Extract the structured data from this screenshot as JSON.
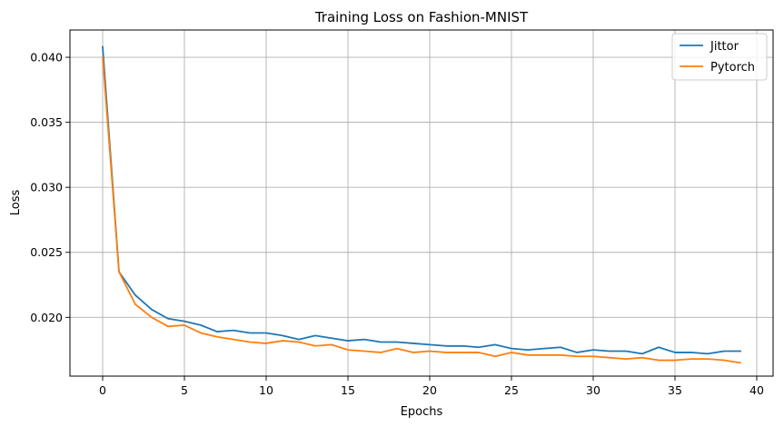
{
  "chart_data": {
    "type": "line",
    "title": "Training Loss on Fashion-MNIST",
    "xlabel": "Epochs",
    "ylabel": "Loss",
    "xlim": [
      -2,
      41
    ],
    "ylim": [
      0.01548,
      0.0421
    ],
    "xticks": [
      0,
      5,
      10,
      15,
      20,
      25,
      30,
      35,
      40
    ],
    "yticks": [
      0.02,
      0.025,
      0.03,
      0.035,
      0.04
    ],
    "xtick_labels": [
      "0",
      "5",
      "10",
      "15",
      "20",
      "25",
      "30",
      "35",
      "40"
    ],
    "ytick_labels": [
      "0.020",
      "0.025",
      "0.030",
      "0.035",
      "0.040"
    ],
    "grid": true,
    "legend_position": "top-right",
    "x": [
      0,
      1,
      2,
      3,
      4,
      5,
      6,
      7,
      8,
      9,
      10,
      11,
      12,
      13,
      14,
      15,
      16,
      17,
      18,
      19,
      20,
      21,
      22,
      23,
      24,
      25,
      26,
      27,
      28,
      29,
      30,
      31,
      32,
      33,
      34,
      35,
      36,
      37,
      38,
      39
    ],
    "series": [
      {
        "name": "Jittor",
        "color": "#1f77b4",
        "values": [
          0.0408,
          0.0235,
          0.0217,
          0.0206,
          0.0199,
          0.0197,
          0.0194,
          0.0189,
          0.019,
          0.0188,
          0.0188,
          0.0186,
          0.0183,
          0.0186,
          0.0184,
          0.0182,
          0.0183,
          0.0181,
          0.0181,
          0.018,
          0.0179,
          0.0178,
          0.0178,
          0.0177,
          0.0179,
          0.0176,
          0.0175,
          0.0176,
          0.0177,
          0.0173,
          0.0175,
          0.0174,
          0.0174,
          0.0172,
          0.0177,
          0.0173,
          0.0173,
          0.0172,
          0.0174,
          0.0174
        ]
      },
      {
        "name": "Pytorch",
        "color": "#ff7f0e",
        "values": [
          0.04,
          0.0235,
          0.021,
          0.02,
          0.0193,
          0.0194,
          0.0188,
          0.0185,
          0.0183,
          0.0181,
          0.018,
          0.0182,
          0.0181,
          0.0178,
          0.0179,
          0.0175,
          0.0174,
          0.0173,
          0.0176,
          0.0173,
          0.0174,
          0.0173,
          0.0173,
          0.0173,
          0.017,
          0.0173,
          0.0171,
          0.0171,
          0.0171,
          0.017,
          0.017,
          0.0169,
          0.0168,
          0.0169,
          0.0167,
          0.0167,
          0.0168,
          0.0168,
          0.0167,
          0.0165
        ]
      }
    ]
  }
}
